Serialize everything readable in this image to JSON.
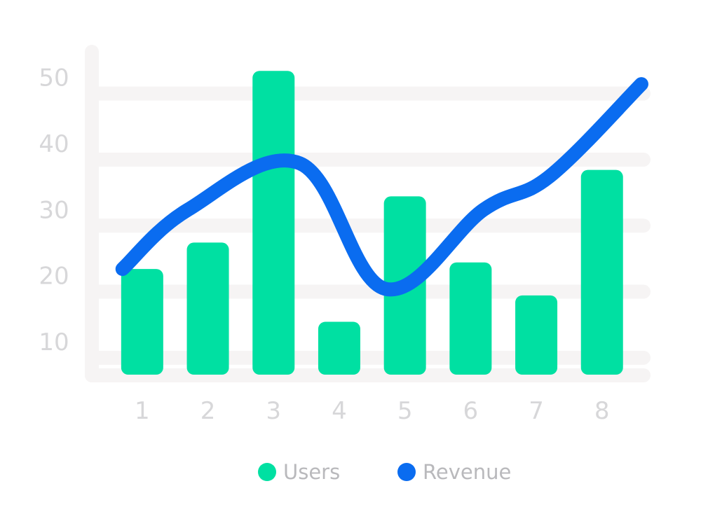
{
  "chart_data": {
    "type": "bar",
    "categories": [
      "1",
      "2",
      "3",
      "4",
      "5",
      "6",
      "7",
      "8"
    ],
    "y_ticks": [
      "10",
      "20",
      "30",
      "40",
      "50"
    ],
    "ylim": [
      5,
      55
    ],
    "grid": true,
    "legend_position": "bottom",
    "series": [
      {
        "name": "Users",
        "type": "bar",
        "color": "#00e0a2",
        "values": [
          21,
          25,
          51,
          13,
          32,
          22,
          17,
          36
        ]
      },
      {
        "name": "Revenue",
        "type": "line",
        "color": "#0a6cf0",
        "values": [
          21,
          30,
          37,
          18,
          30,
          35,
          49
        ],
        "x": [
          0.2,
          1.2,
          2.9,
          4.2,
          5.7,
          6.7,
          8.1
        ]
      }
    ]
  },
  "colors": {
    "grid": "#f6f4f4",
    "axis_text": "#d7d7d9",
    "legend_text": "#b9b9bc"
  }
}
